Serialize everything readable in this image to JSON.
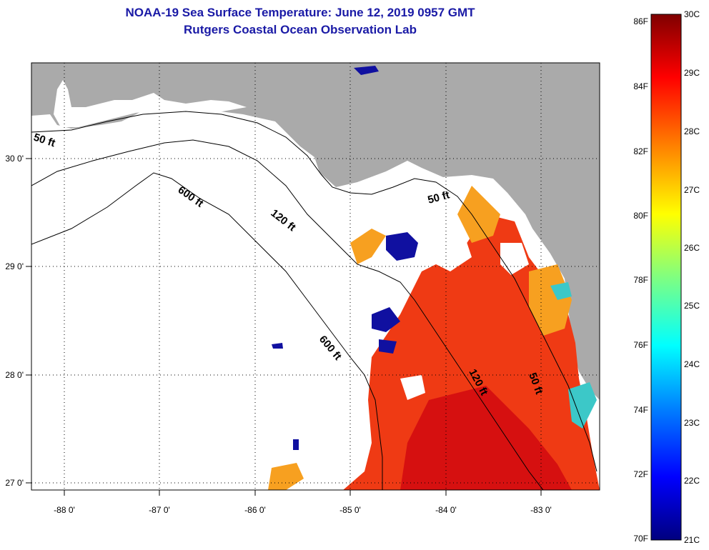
{
  "title": {
    "line1": "NOAA-19 Sea Surface Temperature:  June 12, 2019 0957 GMT",
    "line2": "Rutgers Coastal Ocean Observation Lab"
  },
  "axes": {
    "lon_labels": [
      "-88 0'",
      "-87 0'",
      "-86 0'",
      "-85 0'",
      "-84 0'",
      "-83 0'"
    ],
    "lat_labels": [
      "30 0'",
      "29 0'",
      "28 0'",
      "27 0'"
    ]
  },
  "contours": {
    "c50a": "50 ft",
    "c600a": "600 ft",
    "c120a": "120 ft",
    "c600b": "600 ft",
    "c50b": "50 ft",
    "c120b": "120 ft",
    "c50c": "50 ft"
  },
  "colorbar": {
    "f_labels": [
      "86F",
      "84F",
      "82F",
      "80F",
      "78F",
      "76F",
      "74F",
      "72F",
      "70F"
    ],
    "c_labels": [
      "30C",
      "29C",
      "28C",
      "27C",
      "26C",
      "25C",
      "24C",
      "23C",
      "22C",
      "21C"
    ],
    "gradient": [
      "#7f0000",
      "#ff0000",
      "#ff8000",
      "#ffff00",
      "#80ff80",
      "#00ffff",
      "#0080ff",
      "#0000ff",
      "#00007f"
    ]
  },
  "colors": {
    "land": "#aaaaaa",
    "water_nodata": "#ffffff",
    "warm": "#ef3a14",
    "hot": "#d61010",
    "mid": "#f7a020",
    "cool": "#1010a0",
    "title": "#1a1aa6"
  }
}
